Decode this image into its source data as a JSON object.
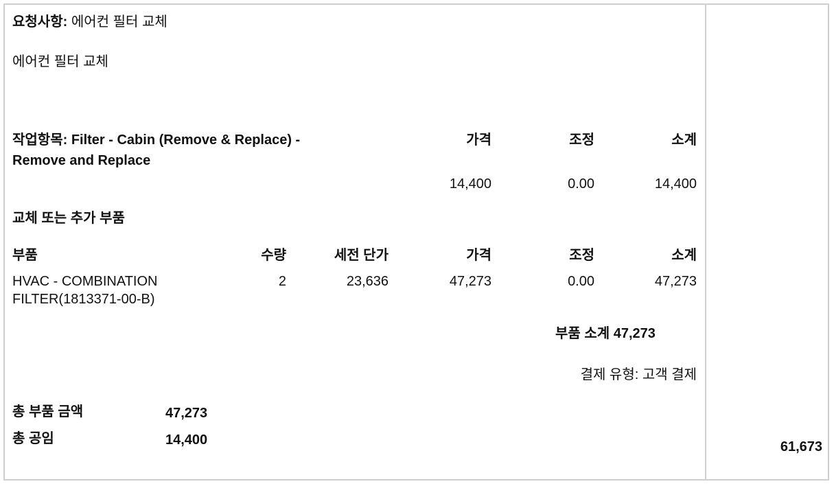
{
  "request": {
    "label": "요청사항:",
    "value": "에어컨 필터 교체",
    "note": "에어컨 필터 교체"
  },
  "job": {
    "label_line1": "작업항목: Filter - Cabin (Remove & Replace) -",
    "label_line2": "Remove and Replace",
    "headers": {
      "price": "가격",
      "adjust": "조정",
      "subtotal": "소계"
    },
    "values": {
      "price": "14,400",
      "adjust": "0.00",
      "subtotal": "14,400"
    }
  },
  "parts_section": {
    "title": "교체 또는 추가 부품",
    "headers": {
      "part": "부품",
      "qty": "수량",
      "unit_price": "세전 단가",
      "price": "가격",
      "adjust": "조정",
      "subtotal": "소계"
    },
    "rows": [
      {
        "name_line1": "HVAC - COMBINATION",
        "name_line2": "FILTER(1813371-00-B)",
        "qty": "2",
        "unit_price": "23,636",
        "price": "47,273",
        "adjust": "0.00",
        "subtotal": "47,273"
      }
    ],
    "subtotal_label": "부품 소계",
    "subtotal_value": "47,273",
    "payment_type": "결제 유형: 고객 결제"
  },
  "totals": {
    "parts_label": "총 부품 금액",
    "parts_value": "47,273",
    "labor_label": "총 공임",
    "labor_value": "14,400",
    "grand_total": "61,673"
  }
}
